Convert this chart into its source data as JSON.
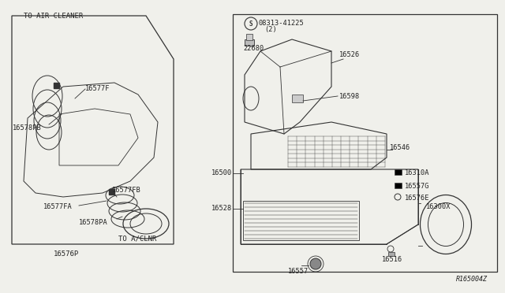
{
  "bg_color": "#f0f0eb",
  "line_color": "#333333",
  "text_color": "#222222",
  "left_box_label": "TO AIR CLEANER",
  "bottom_left_label": "16576P",
  "bottom_right_label": "TO A/CLNR",
  "diagram_ref": "R165004Z",
  "figsize": [
    6.4,
    3.72
  ],
  "dpi": 100
}
